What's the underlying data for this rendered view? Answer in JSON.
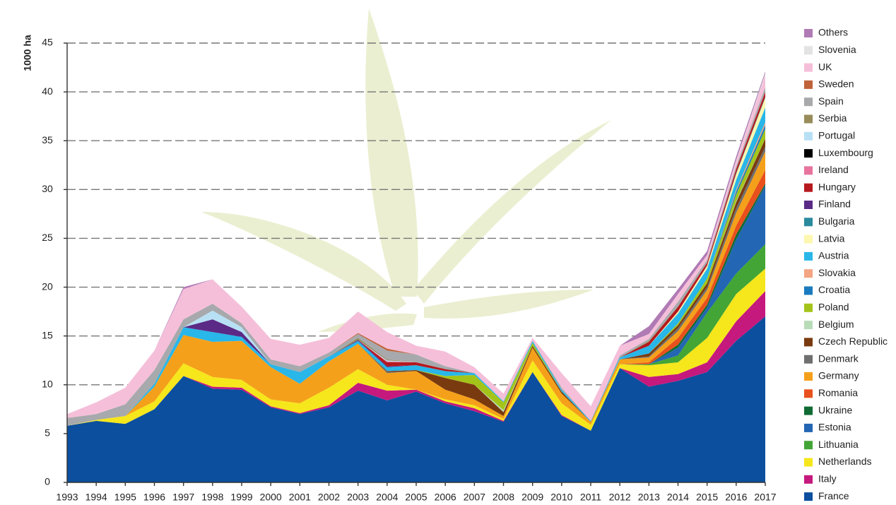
{
  "chart_data": {
    "type": "stacked_area",
    "y_label": "1000 ha",
    "categories": [
      "1993",
      "1994",
      "1995",
      "1996",
      "1997",
      "1998",
      "1999",
      "2000",
      "2001",
      "2002",
      "2003",
      "2004",
      "2005",
      "2006",
      "2007",
      "2008",
      "2009",
      "2010",
      "2011",
      "2012",
      "2013",
      "2014",
      "2015",
      "2016",
      "2017"
    ],
    "ylim": [
      0,
      45
    ],
    "yticks": [
      0,
      5,
      10,
      15,
      20,
      25,
      30,
      35,
      40,
      45
    ],
    "grid": true,
    "legend": "right",
    "series": [
      {
        "name": "France",
        "color": "#0b4f9e",
        "values": [
          5.8,
          6.3,
          6.0,
          7.5,
          10.9,
          9.6,
          9.5,
          7.7,
          7.0,
          7.7,
          9.4,
          8.4,
          9.3,
          8.1,
          7.3,
          6.2,
          11.3,
          6.8,
          5.3,
          11.7,
          9.8,
          10.4,
          11.3,
          14.5,
          17.0
        ]
      },
      {
        "name": "Italy",
        "color": "#c5197d",
        "values": [
          0,
          0,
          0,
          0,
          0,
          0.2,
          0.2,
          0.1,
          0.1,
          0.2,
          0.8,
          1.0,
          0.2,
          0.2,
          0.3,
          0.1,
          0,
          0.1,
          0,
          0,
          1.0,
          0.7,
          1.0,
          2.0,
          2.6
        ]
      },
      {
        "name": "Netherlands",
        "color": "#f6e61c",
        "values": [
          0,
          0.1,
          0.8,
          0.8,
          1.3,
          1.0,
          0.8,
          0.7,
          1.0,
          1.8,
          1.4,
          0.6,
          0,
          0.2,
          0.3,
          0.2,
          1.2,
          1.2,
          0.6,
          0.4,
          1.2,
          1.2,
          2.5,
          2.8,
          2.3
        ]
      },
      {
        "name": "Lithuania",
        "color": "#43a535",
        "values": [
          0,
          0,
          0,
          0,
          0,
          0,
          0,
          0,
          0,
          0,
          0,
          0,
          0,
          0,
          0,
          0,
          0,
          0,
          0,
          0,
          0.1,
          0.7,
          2.6,
          2.1,
          2.5
        ]
      },
      {
        "name": "Estonia",
        "color": "#2366b3",
        "values": [
          0,
          0,
          0,
          0,
          0,
          0,
          0,
          0,
          0,
          0,
          0,
          0,
          0,
          0,
          0,
          0,
          0,
          0,
          0,
          0,
          0,
          0.8,
          0.5,
          3.5,
          6.0
        ]
      },
      {
        "name": "Ukraine",
        "color": "#0f6b33",
        "values": [
          0,
          0,
          0,
          0,
          0,
          0,
          0,
          0,
          0,
          0,
          0,
          0,
          0,
          0,
          0,
          0,
          0,
          0,
          0,
          0,
          0,
          0.3,
          0.3,
          0.5,
          0.2
        ]
      },
      {
        "name": "Romania",
        "color": "#e8501c",
        "values": [
          0,
          0,
          0,
          0,
          0,
          0,
          0,
          0,
          0,
          0,
          0,
          0,
          0,
          0,
          0,
          0,
          0,
          0,
          0,
          0,
          0.2,
          0.7,
          0.7,
          0.9,
          1.4
        ]
      },
      {
        "name": "Germany",
        "color": "#f5a01a",
        "values": [
          0,
          0,
          0,
          1.5,
          2.9,
          3.6,
          4.0,
          3.3,
          2.0,
          2.7,
          2.6,
          1.2,
          1.9,
          1.0,
          0.6,
          0.3,
          1.3,
          1.0,
          0.3,
          0.5,
          0.5,
          0.7,
          0.8,
          1.3,
          1.9
        ]
      },
      {
        "name": "Denmark",
        "color": "#6f6f6f",
        "values": [
          0,
          0,
          0,
          0,
          0,
          0,
          0,
          0,
          0,
          0,
          0,
          0.1,
          0,
          0,
          0,
          0,
          0,
          0,
          0,
          0,
          0.1,
          0.3,
          0.3,
          0.5,
          0.5
        ]
      },
      {
        "name": "Czech Republic",
        "color": "#7a3a10",
        "values": [
          0,
          0,
          0,
          0,
          0,
          0,
          0,
          0,
          0,
          0,
          0,
          0.1,
          0.1,
          1.2,
          1.5,
          0.4,
          0.2,
          0.2,
          0,
          0,
          0.3,
          0.3,
          0.4,
          0.6,
          0.8
        ]
      },
      {
        "name": "Belgium",
        "color": "#b9dcb8",
        "values": [
          0,
          0,
          0,
          0,
          0,
          0,
          0,
          0,
          0,
          0,
          0,
          0,
          0,
          0,
          0,
          0.2,
          0,
          0,
          0,
          0,
          0,
          0,
          0,
          0.1,
          0
        ]
      },
      {
        "name": "Poland",
        "color": "#a4c41a",
        "values": [
          0,
          0,
          0,
          0,
          0,
          0,
          0,
          0,
          0,
          0,
          0,
          0,
          0,
          0.2,
          1.0,
          0.8,
          0.3,
          0,
          0,
          0,
          0,
          0.2,
          0.5,
          0.7,
          1.0
        ]
      },
      {
        "name": "Croatia",
        "color": "#1a7bbf",
        "values": [
          0,
          0,
          0,
          0,
          0,
          0,
          0,
          0,
          0,
          0,
          0,
          0,
          0,
          0,
          0,
          0,
          0,
          0,
          0,
          0,
          0,
          0,
          0,
          0.3,
          0.4
        ]
      },
      {
        "name": "Slovakia",
        "color": "#f4a582",
        "values": [
          0,
          0,
          0,
          0,
          0,
          0,
          0,
          0,
          0,
          0,
          0,
          0,
          0,
          0,
          0,
          0,
          0,
          0,
          0,
          0,
          0,
          0,
          0,
          0.2,
          0.3
        ]
      },
      {
        "name": "Austria",
        "color": "#29b6e8",
        "values": [
          0,
          0,
          0,
          0.3,
          0.8,
          1.0,
          0.4,
          0.3,
          1.2,
          0.5,
          0.3,
          0.4,
          0.5,
          0.5,
          0.2,
          0.1,
          0.2,
          0.2,
          0.1,
          0.2,
          0.8,
          1.0,
          1.0,
          1.0,
          1.5
        ]
      },
      {
        "name": "Latvia",
        "color": "#fdf7b0",
        "values": [
          0,
          0,
          0,
          0,
          0,
          0,
          0,
          0,
          0,
          0,
          0,
          0,
          0,
          0,
          0,
          0,
          0,
          0,
          0,
          0,
          0,
          0.2,
          0.3,
          0.6,
          1.0
        ]
      },
      {
        "name": "Bulgaria",
        "color": "#2b8a9e",
        "values": [
          0,
          0,
          0,
          0,
          0,
          0,
          0,
          0,
          0,
          0,
          0,
          0,
          0,
          0,
          0,
          0,
          0,
          0,
          0,
          0,
          0,
          0,
          0,
          0.1,
          0.1
        ]
      },
      {
        "name": "Finland",
        "color": "#5b2a86",
        "values": [
          0,
          0,
          0,
          0,
          0,
          1.3,
          0.5,
          0,
          0,
          0,
          0.1,
          0.1,
          0,
          0,
          0,
          0,
          0,
          0,
          0,
          0,
          0,
          0,
          0,
          0,
          0
        ]
      },
      {
        "name": "Hungary",
        "color": "#b5191e",
        "values": [
          0,
          0,
          0,
          0,
          0,
          0,
          0,
          0,
          0,
          0,
          0,
          0.4,
          0.3,
          0.2,
          0,
          0,
          0,
          0,
          0,
          0,
          0.4,
          0.5,
          0.3,
          0.4,
          0.5
        ]
      },
      {
        "name": "Ireland",
        "color": "#e8739e",
        "values": [
          0,
          0,
          0,
          0,
          0,
          0,
          0,
          0,
          0,
          0,
          0,
          0.1,
          0,
          0,
          0,
          0,
          0,
          0,
          0,
          0,
          0,
          0,
          0,
          0,
          0
        ]
      },
      {
        "name": "Luxembourg",
        "color": "#000000",
        "values": [
          0,
          0,
          0,
          0,
          0,
          0,
          0,
          0,
          0,
          0,
          0,
          0,
          0,
          0,
          0,
          0,
          0,
          0,
          0,
          0,
          0,
          0,
          0,
          0,
          0
        ]
      },
      {
        "name": "Portugal",
        "color": "#b8e0f5",
        "values": [
          0,
          0,
          0,
          0,
          0,
          0.9,
          0.5,
          0,
          0,
          0,
          0,
          0.1,
          0,
          0,
          0,
          0,
          0,
          0,
          0,
          0,
          0,
          0,
          0,
          0,
          0
        ]
      },
      {
        "name": "Serbia",
        "color": "#978c5a",
        "values": [
          0,
          0,
          0,
          0,
          0,
          0,
          0,
          0,
          0,
          0,
          0.2,
          0.1,
          0,
          0,
          0,
          0,
          0,
          0,
          0,
          0,
          0.1,
          0,
          0,
          0,
          0
        ]
      },
      {
        "name": "Spain",
        "color": "#a7a9ac",
        "values": [
          0.8,
          0.6,
          1.2,
          1.4,
          0.8,
          0.7,
          0.4,
          0.5,
          0.6,
          0.4,
          0.4,
          0.9,
          0.8,
          0.3,
          0,
          0,
          0,
          0.2,
          0,
          0.2,
          0.2,
          0.5,
          0.3,
          0.3,
          0.5
        ]
      },
      {
        "name": "Sweden",
        "color": "#c0623a",
        "values": [
          0,
          0,
          0,
          0,
          0,
          0,
          0,
          0,
          0,
          0,
          0.1,
          0.2,
          0,
          0,
          0,
          0,
          0,
          0,
          0,
          0,
          0,
          0,
          0,
          0,
          0
        ]
      },
      {
        "name": "UK",
        "color": "#f5bfd9",
        "values": [
          0.4,
          1.2,
          1.7,
          2.0,
          3.1,
          2.5,
          1.7,
          2.1,
          2.2,
          1.5,
          2.2,
          1.7,
          0.9,
          1.5,
          0.6,
          0.8,
          0.3,
          1.5,
          1.5,
          1.0,
          0.5,
          0.8,
          0.5,
          0.5,
          1.2
        ]
      },
      {
        "name": "Slovenia",
        "color": "#e3e3e3",
        "values": [
          0,
          0,
          0,
          0,
          0,
          0,
          0,
          0,
          0,
          0,
          0,
          0,
          0,
          0,
          0,
          0,
          0,
          0,
          0,
          0,
          0,
          0,
          0,
          0.1,
          0.2
        ]
      },
      {
        "name": "Others",
        "color": "#b07ab5",
        "values": [
          0,
          0,
          0,
          0,
          0.2,
          0,
          0,
          0,
          0,
          0,
          0,
          0,
          0,
          0,
          0,
          0,
          0,
          0,
          0,
          0,
          0.8,
          0.5,
          0.4,
          0.4,
          0.2
        ]
      }
    ]
  }
}
